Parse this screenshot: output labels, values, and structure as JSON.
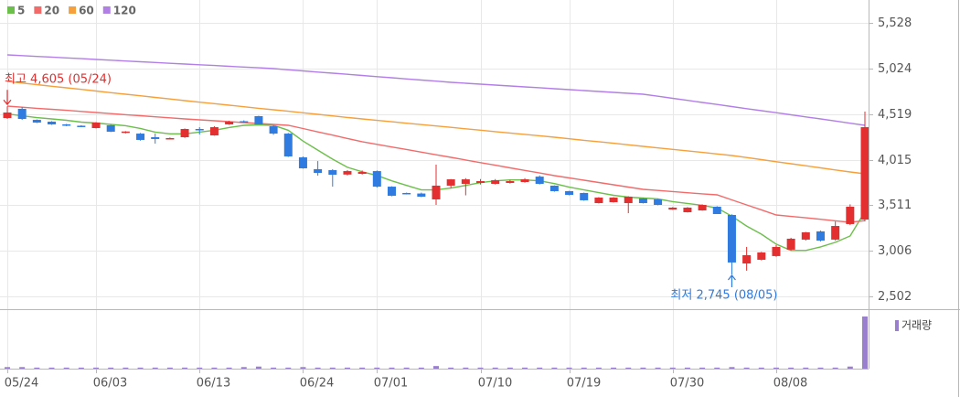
{
  "chart_data": {
    "type": "candlestick",
    "categories": [
      "05/24",
      null,
      null,
      null,
      null,
      null,
      "06/03",
      null,
      null,
      null,
      null,
      null,
      null,
      "06/13",
      null,
      null,
      null,
      null,
      null,
      null,
      "06/24",
      null,
      null,
      null,
      null,
      "07/01",
      null,
      null,
      null,
      null,
      null,
      null,
      "07/10",
      null,
      null,
      null,
      null,
      null,
      "07/19",
      null,
      null,
      null,
      null,
      null,
      null,
      "07/30",
      null,
      null,
      null,
      null,
      null,
      null,
      "08/08",
      null,
      null,
      null,
      null,
      null,
      null
    ],
    "open": [
      4475,
      4577,
      4455,
      4435,
      4405,
      4390,
      4364,
      4395,
      4315,
      4303,
      4263,
      4245,
      4263,
      4354,
      4283,
      4405,
      4440,
      4496,
      4384,
      4303,
      4040,
      3909,
      3899,
      3850,
      3858,
      3888,
      3716,
      3646,
      3640,
      3575,
      3727,
      3747,
      3757,
      3747,
      3757,
      3767,
      3827,
      3727,
      3666,
      3646,
      3534,
      3544,
      3534,
      3585,
      3575,
      3463,
      3433,
      3453,
      3494,
      3403,
      2866,
      2907,
      2948,
      3019,
      3130,
      3221,
      3130,
      3302,
      3352
    ],
    "high": [
      4605,
      4597,
      4460,
      4440,
      4410,
      4395,
      4430,
      4400,
      4330,
      4310,
      4303,
      4260,
      4360,
      4374,
      4385,
      4445,
      4450,
      4500,
      4395,
      4310,
      4050,
      3999,
      3909,
      3899,
      3895,
      3895,
      3720,
      3650,
      3650,
      3959,
      3800,
      3810,
      3800,
      3800,
      3790,
      3810,
      3840,
      3730,
      3670,
      3650,
      3600,
      3600,
      3610,
      3590,
      3580,
      3490,
      3490,
      3520,
      3500,
      3410,
      3049,
      2995,
      3069,
      3150,
      3215,
      3230,
      3330,
      3520,
      4546
    ],
    "low": [
      4465,
      4455,
      4420,
      4400,
      4385,
      4375,
      4360,
      4320,
      4305,
      4225,
      4192,
      4240,
      4255,
      4293,
      4280,
      4400,
      4420,
      4405,
      4290,
      4045,
      3915,
      3838,
      3716,
      3840,
      3850,
      3706,
      3610,
      3630,
      3600,
      3514,
      3700,
      3620,
      3740,
      3740,
      3750,
      3760,
      3740,
      3660,
      3620,
      3560,
      3530,
      3540,
      3423,
      3530,
      3510,
      3460,
      3430,
      3450,
      3413,
      2745,
      2786,
      2900,
      2940,
      3010,
      3120,
      3110,
      3120,
      3290,
      3332
    ],
    "close": [
      4536,
      4465,
      4425,
      4405,
      4395,
      4384,
      4425,
      4324,
      4326,
      4233,
      4243,
      4253,
      4354,
      4344,
      4374,
      4435,
      4430,
      4405,
      4303,
      4050,
      3919,
      3868,
      3848,
      3888,
      3878,
      3716,
      3615,
      3635,
      3605,
      3727,
      3797,
      3797,
      3777,
      3787,
      3777,
      3797,
      3747,
      3666,
      3625,
      3565,
      3595,
      3595,
      3605,
      3534,
      3514,
      3484,
      3484,
      3514,
      3413,
      2877,
      2958,
      2988,
      3049,
      3140,
      3211,
      3119,
      3281,
      3494,
      4374
    ],
    "up_color": "#e32f2f",
    "down_color": "#2f7be0",
    "series": [
      {
        "name": "5",
        "color": "#6cbf4a",
        "values": [
          4520,
          4500,
          4480,
          4465,
          4450,
          4430,
          4420,
          4405,
          4390,
          4360,
          4320,
          4300,
          4300,
          4320,
          4340,
          4370,
          4395,
          4400,
          4395,
          4340,
          4220,
          4120,
          4020,
          3930,
          3880,
          3840,
          3780,
          3730,
          3680,
          3680,
          3700,
          3730,
          3760,
          3780,
          3790,
          3790,
          3780,
          3750,
          3710,
          3680,
          3650,
          3620,
          3600,
          3590,
          3580,
          3550,
          3530,
          3510,
          3480,
          3390,
          3280,
          3190,
          3080,
          3010,
          3010,
          3050,
          3100,
          3170,
          3440
        ]
      },
      {
        "name": "20",
        "color": "#f26b6b",
        "values": [
          4607,
          4595,
          4583,
          4572,
          4560,
          4548,
          4536,
          4524,
          4512,
          4501,
          4489,
          4477,
          4465,
          4455,
          4445,
          4435,
          4425,
          4415,
          4405,
          4395,
          4359,
          4322,
          4286,
          4249,
          4213,
          4184,
          4155,
          4127,
          4098,
          4069,
          4040,
          4011,
          3982,
          3953,
          3924,
          3896,
          3867,
          3838,
          3813,
          3787,
          3762,
          3737,
          3711,
          3686,
          3674,
          3662,
          3649,
          3637,
          3625,
          3570,
          3514,
          3459,
          3403,
          3387,
          3371,
          3355,
          3338,
          3322,
          3340
        ]
      },
      {
        "name": "60",
        "color": "#f5a03c",
        "values": [
          4880,
          4862,
          4845,
          4827,
          4809,
          4792,
          4774,
          4756,
          4739,
          4721,
          4703,
          4686,
          4668,
          4651,
          4634,
          4617,
          4600,
          4583,
          4567,
          4550,
          4533,
          4516,
          4499,
          4482,
          4465,
          4449,
          4434,
          4418,
          4403,
          4387,
          4372,
          4356,
          4341,
          4325,
          4310,
          4294,
          4279,
          4263,
          4246,
          4229,
          4213,
          4196,
          4179,
          4162,
          4145,
          4128,
          4112,
          4095,
          4078,
          4061,
          4038,
          4015,
          3992,
          3969,
          3947,
          3924,
          3901,
          3878,
          3858
        ]
      },
      {
        "name": "120",
        "color": "#b27fe6",
        "values": [
          5174,
          5166,
          5157,
          5149,
          5140,
          5132,
          5123,
          5115,
          5106,
          5098,
          5090,
          5081,
          5073,
          5064,
          5056,
          5047,
          5039,
          5031,
          5022,
          5009,
          4997,
          4984,
          4971,
          4959,
          4946,
          4933,
          4921,
          4908,
          4895,
          4883,
          4870,
          4860,
          4850,
          4840,
          4830,
          4820,
          4810,
          4799,
          4789,
          4779,
          4769,
          4759,
          4749,
          4739,
          4716,
          4693,
          4671,
          4648,
          4625,
          4602,
          4579,
          4556,
          4534,
          4511,
          4488,
          4465,
          4442,
          4418,
          4395
        ]
      }
    ],
    "volume": {
      "name": "거래량",
      "color": "#9b7fcf",
      "values": [
        3,
        3,
        2,
        2,
        2,
        2,
        2,
        2,
        2,
        2,
        2,
        2,
        2,
        2,
        2,
        2,
        3,
        4,
        2,
        2,
        3,
        2,
        2,
        2,
        2,
        2,
        2,
        2,
        2,
        5,
        2,
        2,
        2,
        2,
        2,
        2,
        2,
        2,
        2,
        2,
        2,
        2,
        2,
        2,
        2,
        2,
        2,
        2,
        2,
        3,
        2,
        2,
        2,
        2,
        2,
        2,
        2,
        4,
        100
      ]
    },
    "annotations": [
      "최고 4,605 (05/24)",
      "최저 2,745 (08/05)"
    ],
    "ylim": [
      2502,
      5528
    ],
    "yticks": [
      {
        "value": 2502,
        "label": "2,502"
      },
      {
        "value": 3006,
        "label": "3,006"
      },
      {
        "value": 3511,
        "label": "3,511"
      },
      {
        "value": 4015,
        "label": "4,015"
      },
      {
        "value": 4519,
        "label": "4,519"
      },
      {
        "value": 5024,
        "label": "5,024"
      },
      {
        "value": 5528,
        "label": "5,528"
      }
    ],
    "grid": true
  }
}
